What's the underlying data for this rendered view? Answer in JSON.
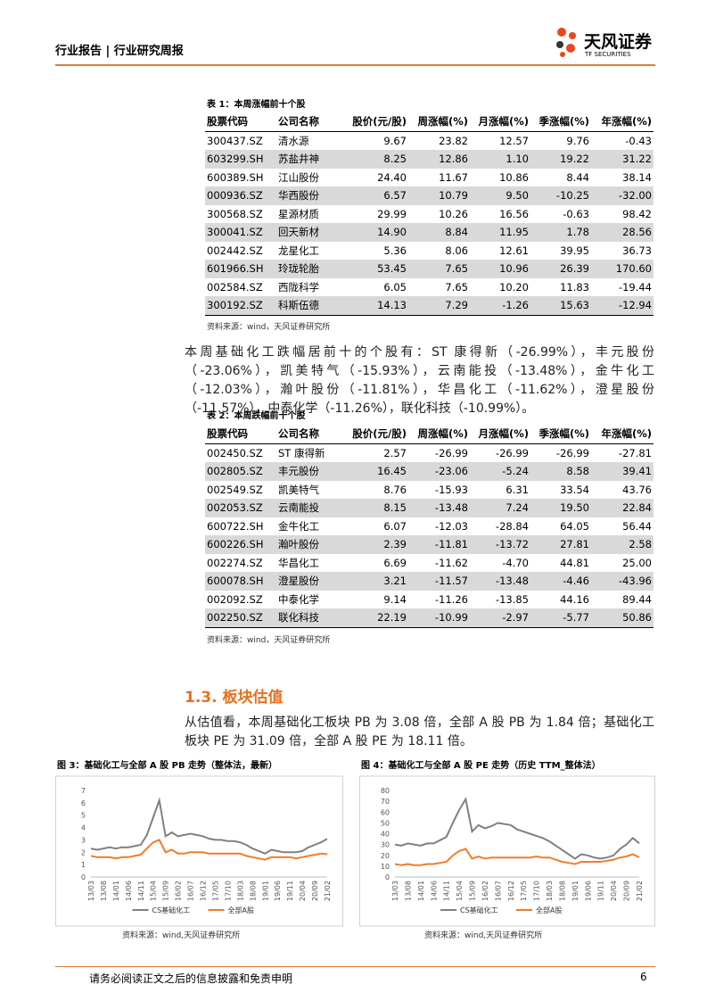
{
  "header": {
    "left": "行业报告 | 行业研究周报",
    "brand": "天风证券",
    "brand_en": "TF SECURITIES"
  },
  "table1": {
    "caption": "表 1：本周涨幅前十个股",
    "columns": [
      "股票代码",
      "公司名称",
      "股价(元/股)",
      "周涨幅(%)",
      "月涨幅(%)",
      "季涨幅(%)",
      "年涨幅(%)"
    ],
    "rows": [
      [
        "300437.SZ",
        "清水源",
        "9.67",
        "23.82",
        "12.57",
        "9.76",
        "-0.43"
      ],
      [
        "603299.SH",
        "苏盐井神",
        "8.25",
        "12.86",
        "1.10",
        "19.22",
        "31.22"
      ],
      [
        "600389.SH",
        "江山股份",
        "24.40",
        "11.67",
        "10.86",
        "8.44",
        "38.14"
      ],
      [
        "000936.SZ",
        "华西股份",
        "6.57",
        "10.79",
        "9.50",
        "-10.25",
        "-32.00"
      ],
      [
        "300568.SZ",
        "星源材质",
        "29.99",
        "10.26",
        "16.56",
        "-0.63",
        "98.42"
      ],
      [
        "300041.SZ",
        "回天新材",
        "14.90",
        "8.84",
        "11.95",
        "1.78",
        "28.56"
      ],
      [
        "002442.SZ",
        "龙星化工",
        "5.36",
        "8.06",
        "12.61",
        "39.95",
        "36.73"
      ],
      [
        "601966.SH",
        "玲珑轮胎",
        "53.45",
        "7.65",
        "10.96",
        "26.39",
        "170.60"
      ],
      [
        "002584.SZ",
        "西陇科学",
        "6.05",
        "7.65",
        "10.20",
        "11.83",
        "-19.44"
      ],
      [
        "300192.SZ",
        "科斯伍德",
        "14.13",
        "7.29",
        "-1.26",
        "15.63",
        "-12.94"
      ]
    ],
    "source": "资料来源：wind，天风证券研究所"
  },
  "paragraph1": "本周基础化工跌幅居前十的个股有：ST 康得新（-26.99%），丰元股份（-23.06%），凯美特气（-15.93%），云南能投（-13.48%），金牛化工（-12.03%），瀚叶股份（-11.81%），华昌化工（-11.62%），澄星股份（-11.57%），中泰化学（-11.26%），联化科技（-10.99%）。",
  "table2": {
    "caption": "表 2：本周跌幅前十个股",
    "columns": [
      "股票代码",
      "公司名称",
      "股价(元/股)",
      "周涨幅(%)",
      "月涨幅(%)",
      "季涨幅(%)",
      "年涨幅(%)"
    ],
    "rows": [
      [
        "002450.SZ",
        "ST 康得新",
        "2.57",
        "-26.99",
        "-26.99",
        "-26.99",
        "-27.81"
      ],
      [
        "002805.SZ",
        "丰元股份",
        "16.45",
        "-23.06",
        "-5.24",
        "8.58",
        "39.41"
      ],
      [
        "002549.SZ",
        "凯美特气",
        "8.76",
        "-15.93",
        "6.31",
        "33.54",
        "43.76"
      ],
      [
        "002053.SZ",
        "云南能投",
        "8.15",
        "-13.48",
        "7.24",
        "19.50",
        "22.84"
      ],
      [
        "600722.SH",
        "金牛化工",
        "6.07",
        "-12.03",
        "-28.84",
        "64.05",
        "56.44"
      ],
      [
        "600226.SH",
        "瀚叶股份",
        "2.39",
        "-11.81",
        "-13.72",
        "27.81",
        "2.58"
      ],
      [
        "002274.SZ",
        "华昌化工",
        "6.69",
        "-11.62",
        "-4.70",
        "44.81",
        "25.00"
      ],
      [
        "600078.SH",
        "澄星股份",
        "3.21",
        "-11.57",
        "-13.48",
        "-4.46",
        "-43.96"
      ],
      [
        "002092.SZ",
        "中泰化学",
        "9.14",
        "-11.26",
        "-13.85",
        "44.16",
        "89.44"
      ],
      [
        "002250.SZ",
        "联化科技",
        "22.19",
        "-10.99",
        "-2.97",
        "-5.77",
        "50.86"
      ]
    ],
    "source": "资料来源：wind，天风证券研究所"
  },
  "section_title": "1.3. 板块估值",
  "paragraph2": "从估值看，本周基础化工板块 PB 为 3.08 倍，全部 A 股 PB 为 1.84 倍；基础化工板块 PE 为 31.09 倍，全部 A 股 PE 为 18.11 倍。",
  "chart_data": [
    {
      "type": "line",
      "title": "图 3：基础化工与全部 A 股 PB 走势（整体法，最新）",
      "source": "资料来源：wind,天风证券研究所",
      "categories": [
        "13/03",
        null,
        "13/08",
        null,
        "14/01",
        null,
        "14/06",
        null,
        "14/11",
        null,
        "15/04",
        null,
        "15/09",
        null,
        "16/02",
        null,
        "16/07",
        null,
        "16/12",
        null,
        "17/05",
        null,
        "17/10",
        null,
        "18/03",
        null,
        "18/08",
        null,
        "19/01",
        null,
        "19/06",
        null,
        "19/11",
        null,
        "20/04",
        null,
        "20/09",
        null,
        "21/02"
      ],
      "series": [
        {
          "name": "CS基础化工",
          "color": "#808080",
          "values": [
            2.3,
            2.2,
            2.3,
            2.4,
            2.3,
            2.4,
            2.4,
            2.5,
            2.6,
            3.4,
            4.8,
            6.2,
            3.3,
            3.6,
            3.3,
            3.4,
            3.5,
            3.4,
            3.3,
            3.1,
            3.0,
            3.0,
            2.9,
            2.9,
            2.8,
            2.6,
            2.3,
            2.1,
            1.9,
            2.2,
            2.1,
            2.0,
            2.0,
            2.0,
            2.1,
            2.4,
            2.6,
            2.8,
            3.08
          ]
        },
        {
          "name": "全部A股",
          "color": "#f07d2c",
          "values": [
            1.7,
            1.6,
            1.6,
            1.6,
            1.5,
            1.6,
            1.6,
            1.7,
            1.8,
            2.3,
            2.8,
            3.0,
            2.0,
            2.2,
            1.9,
            1.9,
            2.0,
            2.0,
            2.0,
            1.9,
            1.9,
            1.9,
            1.9,
            1.9,
            1.9,
            1.7,
            1.6,
            1.5,
            1.4,
            1.6,
            1.6,
            1.6,
            1.6,
            1.5,
            1.6,
            1.7,
            1.8,
            1.9,
            1.84
          ]
        }
      ],
      "ylim": [
        0,
        7
      ],
      "yticks": [
        0,
        1,
        2,
        3,
        4,
        5,
        6,
        7
      ],
      "grid": false
    },
    {
      "type": "line",
      "title": "图 4：基础化工与全部 A 股 PE 走势（历史 TTM_整体法）",
      "source": "资料来源：wind,天风证券研究所",
      "categories": [
        "13/03",
        null,
        "13/08",
        null,
        "14/01",
        null,
        "14/06",
        null,
        "14/11",
        null,
        "15/04",
        null,
        "15/09",
        null,
        "16/02",
        null,
        "16/07",
        null,
        "16/12",
        null,
        "17/05",
        null,
        "17/10",
        null,
        "18/03",
        null,
        "18/08",
        null,
        "19/01",
        null,
        "19/06",
        null,
        "19/11",
        null,
        "20/04",
        null,
        "20/09",
        null,
        "21/02"
      ],
      "series": [
        {
          "name": "CS基础化工",
          "color": "#808080",
          "values": [
            30,
            29,
            31,
            30,
            29,
            31,
            31,
            34,
            37,
            50,
            62,
            72,
            42,
            48,
            45,
            47,
            50,
            49,
            48,
            44,
            42,
            40,
            38,
            36,
            33,
            29,
            25,
            21,
            17,
            21,
            20,
            18,
            17,
            18,
            20,
            26,
            30,
            36,
            31.09
          ]
        },
        {
          "name": "全部A股",
          "color": "#f07d2c",
          "values": [
            12,
            11,
            12,
            11,
            11,
            12,
            12,
            13,
            14,
            20,
            24,
            26,
            17,
            19,
            17,
            18,
            18,
            18,
            18,
            18,
            18,
            18,
            19,
            18,
            18,
            16,
            14,
            13,
            12,
            14,
            14,
            14,
            14,
            15,
            16,
            18,
            19,
            21,
            18.11
          ]
        }
      ],
      "ylim": [
        0,
        80
      ],
      "yticks": [
        0,
        10,
        20,
        30,
        40,
        50,
        60,
        70,
        80
      ],
      "grid": false
    }
  ],
  "footer": {
    "disclaimer": "请务必阅读正文之后的信息披露和免责申明",
    "page": "6"
  }
}
